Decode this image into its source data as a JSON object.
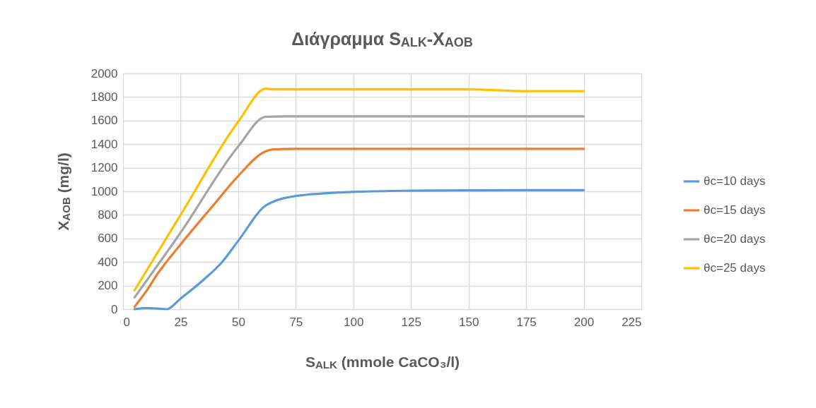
{
  "chart_data": {
    "type": "line",
    "title": "Διάγραμμα S$_{ALK}$-X$_{AOB}$",
    "xlabel": "S$_{ALK}$ (mmole CaCO₃/l)",
    "ylabel": "X$_{AOB}$ (mg/l)",
    "xlim": [
      0,
      225
    ],
    "xticks": [
      0,
      25,
      50,
      75,
      100,
      125,
      150,
      175,
      200,
      225
    ],
    "ylim": [
      0,
      2000
    ],
    "yticks": [
      0,
      200,
      400,
      600,
      800,
      1000,
      1200,
      1400,
      1600,
      1800,
      2000
    ],
    "grid": true,
    "legend": "right",
    "line_style": "solid",
    "marker": "none",
    "series": [
      {
        "name": "θc=10 days",
        "color": "#5b9bd5",
        "x": [
          5,
          10,
          15,
          19,
          25,
          35,
          43,
          50,
          62,
          65,
          75,
          100,
          125,
          150,
          175,
          200
        ],
        "values": [
          0,
          10,
          5,
          0,
          90,
          250,
          400,
          580,
          880,
          910,
          960,
          995,
          1005,
          1008,
          1010,
          1010
        ]
      },
      {
        "name": "θc=15 days",
        "color": "#ed7d31",
        "x": [
          5,
          10,
          15,
          25,
          40,
          50,
          62,
          65,
          75,
          100,
          125,
          150,
          175,
          200
        ],
        "values": [
          20,
          150,
          300,
          550,
          900,
          1130,
          1340,
          1355,
          1360,
          1360,
          1360,
          1360,
          1360,
          1360
        ]
      },
      {
        "name": "θc=20 days",
        "color": "#a5a5a5",
        "x": [
          5,
          25,
          50,
          62,
          70,
          100,
          125,
          150,
          175,
          200
        ],
        "values": [
          100,
          650,
          1380,
          1632,
          1635,
          1635,
          1635,
          1635,
          1635,
          1635
        ]
      },
      {
        "name": "θc=25 days",
        "color": "#ffc000",
        "x": [
          5,
          25,
          50,
          62,
          65,
          100,
          125,
          150,
          175,
          200
        ],
        "values": [
          160,
          800,
          1590,
          1870,
          1865,
          1865,
          1865,
          1865,
          1850,
          1850
        ]
      }
    ]
  }
}
